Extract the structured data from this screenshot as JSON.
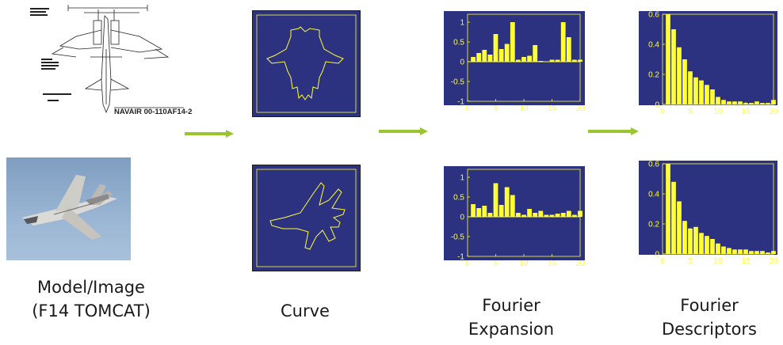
{
  "blueprint": {
    "label": "NAVAIR 00-110AF14-2"
  },
  "captions": {
    "model_line1": "Model/Image",
    "model_line2": "(F14 TOMCAT)",
    "curve": "Curve",
    "fourier_exp_line1": "Fourier",
    "fourier_exp_line2": "Expansion",
    "fourier_desc_line1": "Fourier",
    "fourier_desc_line2": "Descriptors"
  },
  "colors": {
    "plot_bg": "#2c3280",
    "plot_fg": "#ffff33",
    "arrow": "#9ac52f"
  },
  "chart_data": [
    {
      "id": "expansion-top",
      "type": "bar",
      "x": [
        1,
        2,
        3,
        4,
        5,
        6,
        7,
        8,
        9,
        10,
        11,
        12,
        13,
        14,
        15,
        16,
        17,
        18,
        19,
        20
      ],
      "values": [
        0.12,
        0.22,
        0.3,
        0.18,
        0.7,
        0.32,
        0.45,
        1.0,
        0.05,
        0.12,
        0.15,
        0.42,
        0.02,
        0.0,
        0.05,
        0.05,
        1.0,
        0.62,
        0.05,
        0.05
      ],
      "ylim": [
        -1,
        1.2
      ],
      "xlim": [
        0,
        20
      ],
      "yticks": [
        "1",
        "0.5",
        "0",
        "-0.5",
        "-1"
      ],
      "ytick_values": [
        1,
        0.5,
        0,
        -0.5,
        -1
      ],
      "xticks": [
        "0",
        "5",
        "10",
        "15",
        "20"
      ],
      "xtick_values": [
        0,
        5,
        10,
        15,
        20
      ]
    },
    {
      "id": "expansion-bottom",
      "type": "bar",
      "x": [
        1,
        2,
        3,
        4,
        5,
        6,
        7,
        8,
        9,
        10,
        11,
        12,
        13,
        14,
        15,
        16,
        17,
        18,
        19,
        20
      ],
      "values": [
        0.32,
        0.22,
        0.28,
        0.1,
        0.85,
        0.3,
        0.75,
        0.55,
        0.1,
        0.05,
        0.2,
        0.1,
        0.15,
        0.05,
        0.05,
        0.08,
        0.1,
        0.15,
        0.05,
        0.15
      ],
      "ylim": [
        -1,
        1.2
      ],
      "xlim": [
        0,
        20
      ],
      "yticks": [
        "1",
        "0.5",
        "0",
        "-0.5",
        "-1"
      ],
      "ytick_values": [
        1,
        0.5,
        0,
        -0.5,
        -1
      ],
      "xticks": [
        "0",
        "5",
        "10",
        "15",
        "20"
      ],
      "xtick_values": [
        0,
        5,
        10,
        15,
        20
      ]
    },
    {
      "id": "descriptors-top",
      "type": "bar",
      "x": [
        1,
        2,
        3,
        4,
        5,
        6,
        7,
        8,
        9,
        10,
        11,
        12,
        13,
        14,
        15,
        16,
        17,
        18,
        19,
        20
      ],
      "values": [
        0.6,
        0.5,
        0.38,
        0.3,
        0.22,
        0.18,
        0.16,
        0.13,
        0.1,
        0.05,
        0.03,
        0.02,
        0.02,
        0.02,
        0.01,
        0.01,
        0.02,
        0.01,
        0.01,
        0.03
      ],
      "ylim": [
        0,
        0.6
      ],
      "xlim": [
        0,
        20
      ],
      "yticks": [
        "0.6",
        "0.4",
        "0.2",
        "0"
      ],
      "ytick_values": [
        0.6,
        0.4,
        0.2,
        0
      ],
      "xticks": [
        "0",
        "5",
        "10",
        "15",
        "20"
      ],
      "xtick_values": [
        0,
        5,
        10,
        15,
        20
      ]
    },
    {
      "id": "descriptors-bottom",
      "type": "bar",
      "x": [
        1,
        2,
        3,
        4,
        5,
        6,
        7,
        8,
        9,
        10,
        11,
        12,
        13,
        14,
        15,
        16,
        17,
        18,
        19,
        20
      ],
      "values": [
        0.6,
        0.48,
        0.35,
        0.22,
        0.17,
        0.18,
        0.14,
        0.12,
        0.1,
        0.07,
        0.05,
        0.04,
        0.03,
        0.03,
        0.03,
        0.02,
        0.02,
        0.02,
        0.01,
        0.02
      ],
      "ylim": [
        0,
        0.6
      ],
      "xlim": [
        0,
        20
      ],
      "yticks": [
        "0.6",
        "0.4",
        "0.2",
        "0"
      ],
      "ytick_values": [
        0.6,
        0.4,
        0.2,
        0
      ],
      "xticks": [
        "0",
        "5",
        "10",
        "15",
        "20"
      ],
      "xtick_values": [
        0,
        5,
        10,
        15,
        20
      ]
    }
  ]
}
